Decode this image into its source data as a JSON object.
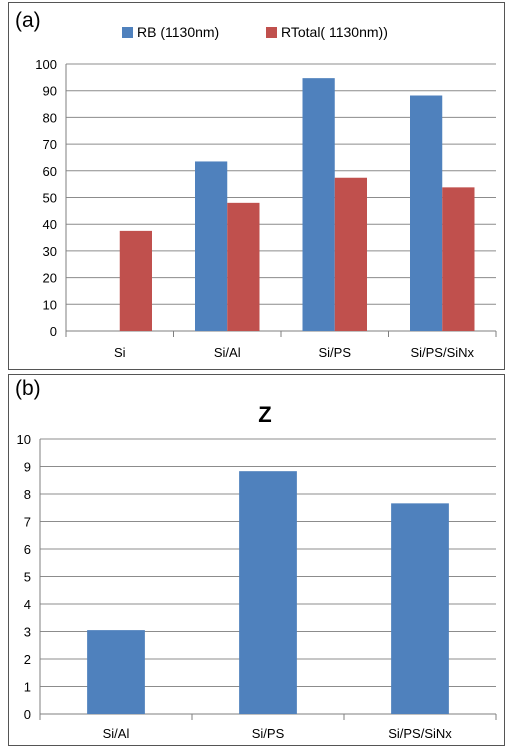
{
  "chart_data": [
    {
      "panel_label": "(a)",
      "type": "bar",
      "title": "",
      "categories": [
        "Si",
        "Si/Al",
        "Si/PS",
        "Si/PS/SiNx"
      ],
      "series": [
        {
          "name": "RB (1130nm)",
          "color": "#4F81BD",
          "values": [
            null,
            63.5,
            94.7,
            88.2
          ]
        },
        {
          "name": "RTotal( 1130nm))",
          "color": "#C0504D",
          "values": [
            37.5,
            48.0,
            57.4,
            53.8
          ]
        }
      ],
      "ylim": [
        0,
        100
      ],
      "yticks": [
        0,
        10,
        20,
        30,
        40,
        50,
        60,
        70,
        80,
        90,
        100
      ],
      "grid": true,
      "legend_position": "top"
    },
    {
      "panel_label": "(b)",
      "type": "bar",
      "title": "Z",
      "categories": [
        "Si/Al",
        "Si/PS",
        "Si/PS/SiNx"
      ],
      "series": [
        {
          "name": "Z",
          "color": "#4F81BD",
          "values": [
            3.05,
            8.83,
            7.66
          ]
        }
      ],
      "ylim": [
        0,
        10
      ],
      "yticks": [
        0,
        1,
        2,
        3,
        4,
        5,
        6,
        7,
        8,
        9,
        10
      ],
      "grid": true,
      "legend_position": "none"
    }
  ]
}
